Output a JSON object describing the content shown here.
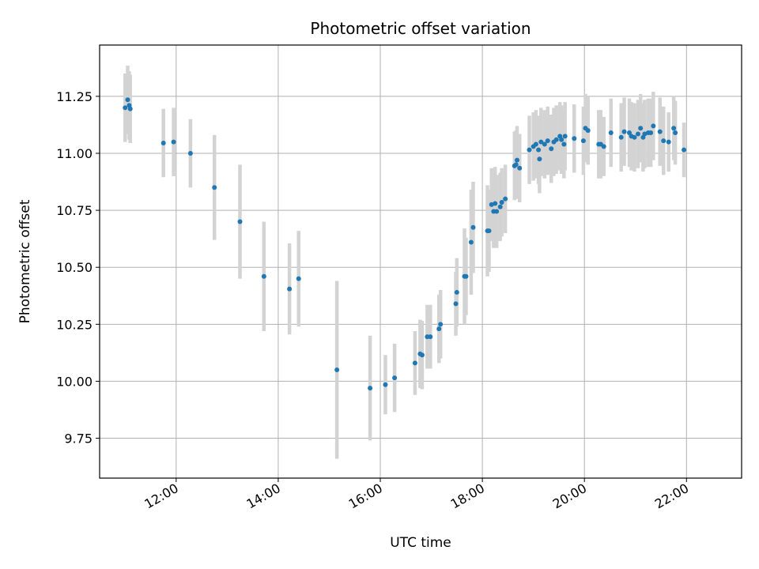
{
  "chart_data": {
    "type": "scatter",
    "title": "Photometric offset variation",
    "xlabel": "UTC time",
    "ylabel": "Photometric offset",
    "x_unit": "hours (UTC)",
    "xlim": [
      10.5,
      23.08
    ],
    "ylim": [
      9.575,
      11.475
    ],
    "x_ticks": [
      {
        "value": 12,
        "label": "12:00"
      },
      {
        "value": 14,
        "label": "14:00"
      },
      {
        "value": 16,
        "label": "16:00"
      },
      {
        "value": 18,
        "label": "18:00"
      },
      {
        "value": 20,
        "label": "20:00"
      },
      {
        "value": 22,
        "label": "22:00"
      }
    ],
    "y_ticks": [
      {
        "value": 9.75,
        "label": "9.75"
      },
      {
        "value": 10.0,
        "label": "10.00"
      },
      {
        "value": 10.25,
        "label": "10.25"
      },
      {
        "value": 10.5,
        "label": "10.50"
      },
      {
        "value": 10.75,
        "label": "10.75"
      },
      {
        "value": 11.0,
        "label": "11.00"
      },
      {
        "value": 11.25,
        "label": "11.25"
      }
    ],
    "grid": true,
    "marker_color": "#1f77b4",
    "errorbar_color": "#d3d3d3",
    "points": [
      [
        11.0,
        11.2,
        0.15
      ],
      [
        11.05,
        11.235,
        0.15
      ],
      [
        11.08,
        11.21,
        0.15
      ],
      [
        11.1,
        11.195,
        0.15
      ],
      [
        11.75,
        11.045,
        0.15
      ],
      [
        11.95,
        11.05,
        0.15
      ],
      [
        12.28,
        11.0,
        0.15
      ],
      [
        12.75,
        10.85,
        0.23
      ],
      [
        13.25,
        10.7,
        0.25
      ],
      [
        13.72,
        10.46,
        0.24
      ],
      [
        14.22,
        10.405,
        0.2
      ],
      [
        14.4,
        10.45,
        0.21
      ],
      [
        15.15,
        10.05,
        0.39
      ],
      [
        15.8,
        9.97,
        0.23
      ],
      [
        16.1,
        9.985,
        0.13
      ],
      [
        16.28,
        10.015,
        0.15
      ],
      [
        16.68,
        10.08,
        0.14
      ],
      [
        16.78,
        10.12,
        0.15
      ],
      [
        16.82,
        10.115,
        0.15
      ],
      [
        16.92,
        10.195,
        0.14
      ],
      [
        16.98,
        10.195,
        0.14
      ],
      [
        17.15,
        10.23,
        0.15
      ],
      [
        17.18,
        10.25,
        0.15
      ],
      [
        17.48,
        10.34,
        0.14
      ],
      [
        17.5,
        10.39,
        0.15
      ],
      [
        17.65,
        10.46,
        0.21
      ],
      [
        17.68,
        10.46,
        0.17
      ],
      [
        17.78,
        10.61,
        0.23
      ],
      [
        17.82,
        10.675,
        0.2
      ],
      [
        18.1,
        10.66,
        0.2
      ],
      [
        18.13,
        10.66,
        0.18
      ],
      [
        18.18,
        10.775,
        0.16
      ],
      [
        18.22,
        10.745,
        0.16
      ],
      [
        18.25,
        10.78,
        0.16
      ],
      [
        18.28,
        10.745,
        0.16
      ],
      [
        18.35,
        10.765,
        0.15
      ],
      [
        18.38,
        10.785,
        0.15
      ],
      [
        18.45,
        10.8,
        0.15
      ],
      [
        18.63,
        10.945,
        0.15
      ],
      [
        18.66,
        10.95,
        0.15
      ],
      [
        18.68,
        10.97,
        0.15
      ],
      [
        18.73,
        10.935,
        0.15
      ],
      [
        18.92,
        11.015,
        0.15
      ],
      [
        19.0,
        11.03,
        0.15
      ],
      [
        19.05,
        11.04,
        0.15
      ],
      [
        19.1,
        11.015,
        0.15
      ],
      [
        19.12,
        10.975,
        0.15
      ],
      [
        19.15,
        11.05,
        0.15
      ],
      [
        19.22,
        11.04,
        0.15
      ],
      [
        19.28,
        11.055,
        0.15
      ],
      [
        19.35,
        11.02,
        0.15
      ],
      [
        19.4,
        11.05,
        0.15
      ],
      [
        19.45,
        11.06,
        0.15
      ],
      [
        19.52,
        11.075,
        0.15
      ],
      [
        19.55,
        11.06,
        0.15
      ],
      [
        19.6,
        11.04,
        0.15
      ],
      [
        19.62,
        11.075,
        0.15
      ],
      [
        19.8,
        11.065,
        0.15
      ],
      [
        19.98,
        11.055,
        0.15
      ],
      [
        20.02,
        11.11,
        0.15
      ],
      [
        20.07,
        11.1,
        0.15
      ],
      [
        20.28,
        11.04,
        0.15
      ],
      [
        20.32,
        11.04,
        0.15
      ],
      [
        20.38,
        11.03,
        0.13
      ],
      [
        20.52,
        11.09,
        0.15
      ],
      [
        20.72,
        11.07,
        0.15
      ],
      [
        20.78,
        11.095,
        0.15
      ],
      [
        20.88,
        11.09,
        0.15
      ],
      [
        20.92,
        11.075,
        0.15
      ],
      [
        20.98,
        11.07,
        0.15
      ],
      [
        21.05,
        11.085,
        0.15
      ],
      [
        21.1,
        11.11,
        0.15
      ],
      [
        21.15,
        11.07,
        0.15
      ],
      [
        21.18,
        11.085,
        0.15
      ],
      [
        21.25,
        11.09,
        0.15
      ],
      [
        21.3,
        11.09,
        0.15
      ],
      [
        21.35,
        11.12,
        0.15
      ],
      [
        21.48,
        11.095,
        0.15
      ],
      [
        21.55,
        11.055,
        0.15
      ],
      [
        21.65,
        11.05,
        0.13
      ],
      [
        21.75,
        11.11,
        0.14
      ],
      [
        21.78,
        11.09,
        0.14
      ],
      [
        21.95,
        11.015,
        0.12
      ]
    ]
  }
}
